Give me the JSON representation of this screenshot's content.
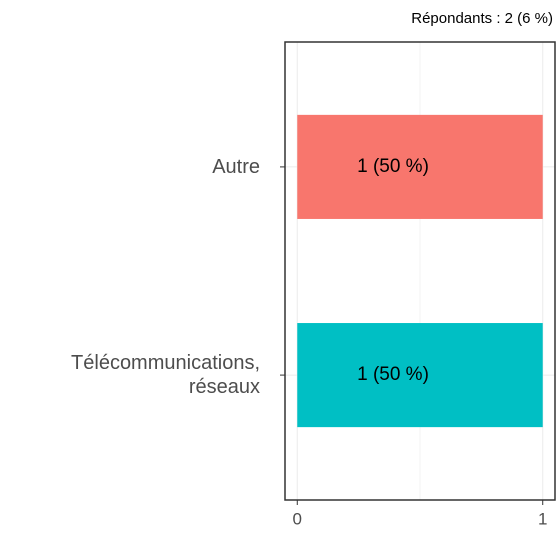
{
  "chart_data": {
    "type": "bar",
    "orientation": "horizontal",
    "subtitle": "Répondants : 2 (6 %)",
    "categories": [
      "Autre",
      "Télécommunications,\nréseaux"
    ],
    "values": [
      1,
      1
    ],
    "value_labels": [
      "1 (50 %)",
      "1 (50 %)"
    ],
    "colors": [
      "#F8766D",
      "#00BFC4"
    ],
    "xlim": [
      -0.05,
      1.05
    ],
    "xticks": [
      0,
      1
    ],
    "grid": true
  }
}
